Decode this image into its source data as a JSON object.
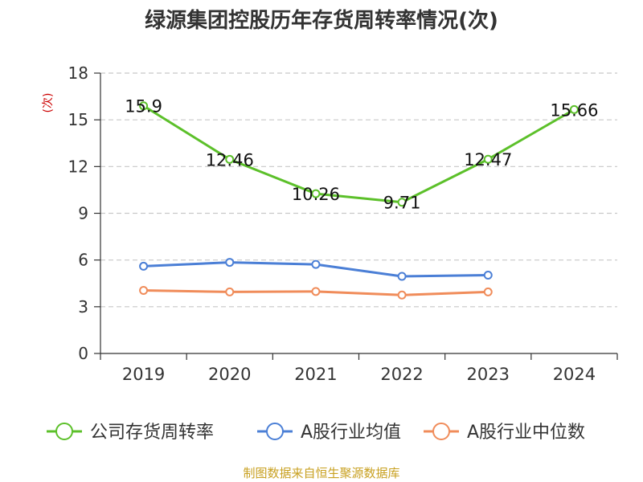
{
  "chart_data": {
    "type": "line",
    "title": "绿源集团控股历年存货周转率情况(次)",
    "ylabel": "(次)",
    "categories": [
      "2019",
      "2020",
      "2021",
      "2022",
      "2023",
      "2024"
    ],
    "ylim": [
      0,
      18
    ],
    "yticks": [
      0,
      3,
      6,
      9,
      12,
      15,
      18
    ],
    "grid": true,
    "legend_position": "bottom",
    "series": [
      {
        "name": "公司存货周转率",
        "color": "#5cc02a",
        "values": [
          15.9,
          12.46,
          10.26,
          9.71,
          12.47,
          15.66
        ],
        "labels": [
          "15.9",
          "12.46",
          "10.26",
          "9.71",
          "12.47",
          "15.66"
        ]
      },
      {
        "name": "A股行业均值",
        "color": "#4b7fd6",
        "values": [
          5.6,
          5.85,
          5.72,
          4.95,
          5.03,
          null
        ],
        "labels": []
      },
      {
        "name": "A股行业中位数",
        "color": "#f08c5a",
        "values": [
          4.05,
          3.95,
          3.98,
          3.75,
          3.95,
          null
        ],
        "labels": []
      }
    ],
    "source": "制图数据来自恒生聚源数据库"
  }
}
